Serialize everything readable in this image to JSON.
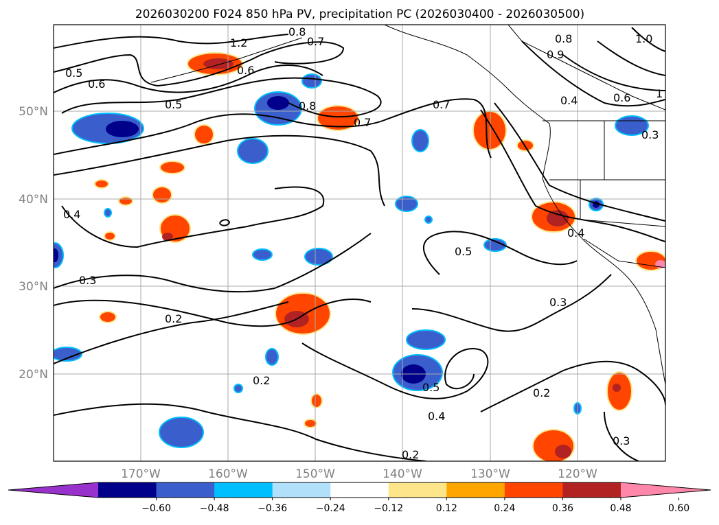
{
  "title": "2026030200 F024 850 hPa PV, precipitation PC (2026030400 - 2026030500)",
  "chart_data": {
    "type": "map",
    "variable": "850 hPa PV contours with precipitation PC shading",
    "lat_labels": [
      "50°N",
      "40°N",
      "30°N",
      "20°N"
    ],
    "lon_labels": [
      "170°W",
      "160°W",
      "150°W",
      "140°W",
      "130°W",
      "120°W"
    ],
    "colorbar": {
      "ticks": [
        "−0.60",
        "−0.48",
        "−0.36",
        "−0.24",
        "−0.12",
        "0.12",
        "0.24",
        "0.36",
        "0.48",
        "0.60"
      ],
      "colors": [
        "#9932cc",
        "#00008b",
        "#3a5fcd",
        "#00bfff",
        "#b0e0fa",
        "#ffffff",
        "#fde68a",
        "#ffa500",
        "#ff4500",
        "#b22222",
        "#ff88aa"
      ]
    },
    "contour_labels": [
      "0.5",
      "0.6",
      "1.2",
      "0.8",
      "0.7",
      "0.6",
      "0.5",
      "0.8",
      "0.7",
      "0.7",
      "0.8",
      "0.9",
      "1.0",
      "0.4",
      "0.6",
      "1",
      "0.3",
      "0.4",
      "0.4",
      "0.5",
      "0.3",
      "0.3",
      "0.2",
      "0.2",
      "0.5",
      "0.4",
      "0.2",
      "0.3",
      "0.2"
    ]
  }
}
